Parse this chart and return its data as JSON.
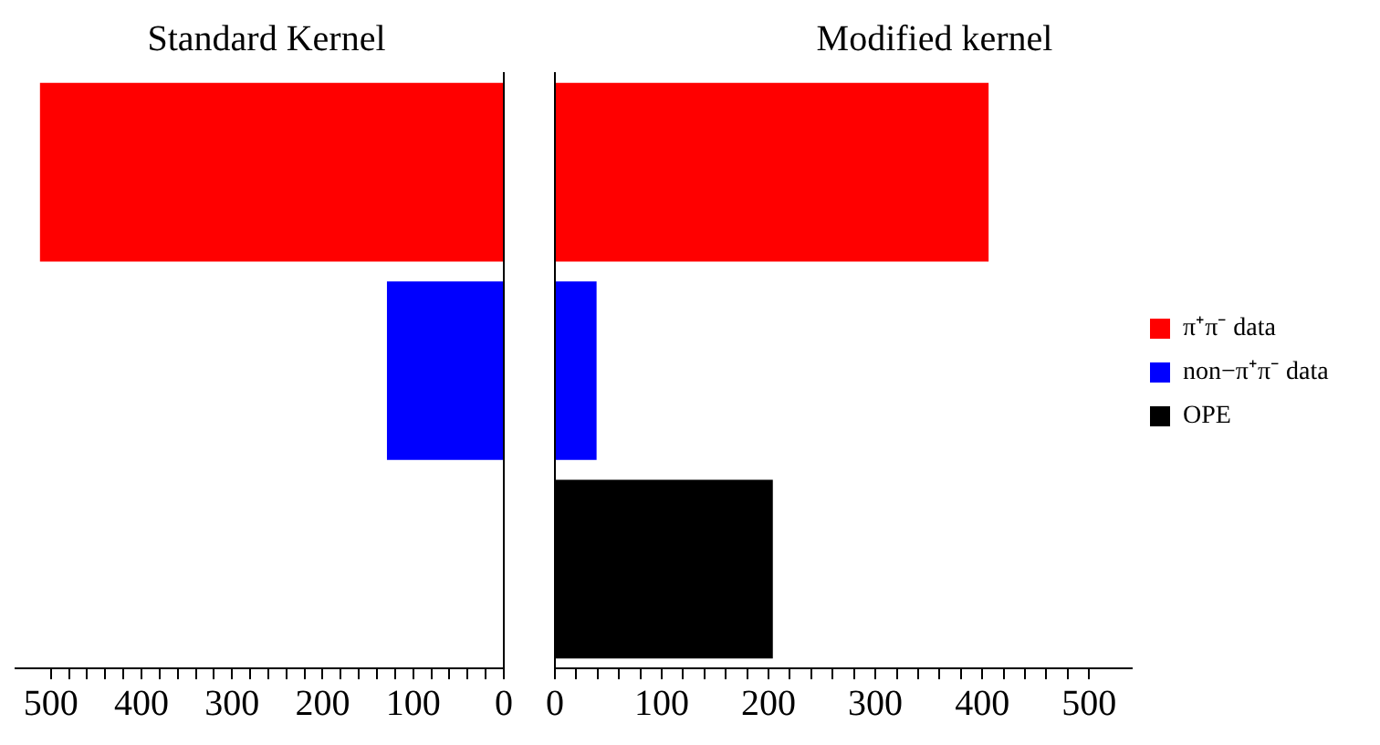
{
  "chart_data": [
    {
      "type": "bar",
      "orientation": "horizontal",
      "title": "Standard Kernel",
      "categories": [
        null,
        null,
        null
      ],
      "series": [
        {
          "color": "#ff0000",
          "values": [
            512,
            null,
            null
          ]
        },
        {
          "color": "#0000ff",
          "values": [
            null,
            129,
            null
          ]
        },
        {
          "color": "#000000",
          "values": [
            null,
            null,
            0
          ]
        }
      ],
      "xlim": [
        540,
        0
      ],
      "xticks": [
        {
          "value": 500,
          "label": "500"
        },
        {
          "value": 480,
          "label": null
        },
        {
          "value": 460,
          "label": null
        },
        {
          "value": 440,
          "label": null
        },
        {
          "value": 420,
          "label": null
        },
        {
          "value": 400,
          "label": "400"
        },
        {
          "value": 380,
          "label": null
        },
        {
          "value": 360,
          "label": null
        },
        {
          "value": 340,
          "label": null
        },
        {
          "value": 320,
          "label": null
        },
        {
          "value": 300,
          "label": "300"
        },
        {
          "value": 280,
          "label": null
        },
        {
          "value": 260,
          "label": null
        },
        {
          "value": 240,
          "label": null
        },
        {
          "value": 220,
          "label": null
        },
        {
          "value": 200,
          "label": "200"
        },
        {
          "value": 180,
          "label": null
        },
        {
          "value": 160,
          "label": null
        },
        {
          "value": 140,
          "label": null
        },
        {
          "value": 120,
          "label": null
        },
        {
          "value": 100,
          "label": "100"
        },
        {
          "value": 80,
          "label": null
        },
        {
          "value": 60,
          "label": null
        },
        {
          "value": 40,
          "label": null
        },
        {
          "value": 20,
          "label": null
        },
        {
          "value": 0,
          "label": "0"
        }
      ],
      "grid": false
    },
    {
      "type": "bar",
      "orientation": "horizontal",
      "title": "Modified kernel",
      "categories": [
        null,
        null,
        null
      ],
      "series": [
        {
          "name": "π⁺π⁻ data",
          "color": "#ff0000",
          "values": [
            406,
            null,
            null
          ]
        },
        {
          "name": "non−π⁺π⁻ data",
          "color": "#0000ff",
          "values": [
            null,
            39,
            null
          ]
        },
        {
          "name": "OPE",
          "color": "#000000",
          "values": [
            null,
            null,
            204
          ]
        }
      ],
      "xlim": [
        0,
        540
      ],
      "xticks": [
        {
          "value": 0,
          "label": "0"
        },
        {
          "value": 20,
          "label": null
        },
        {
          "value": 40,
          "label": null
        },
        {
          "value": 60,
          "label": null
        },
        {
          "value": 80,
          "label": null
        },
        {
          "value": 100,
          "label": "100"
        },
        {
          "value": 120,
          "label": null
        },
        {
          "value": 140,
          "label": null
        },
        {
          "value": 160,
          "label": null
        },
        {
          "value": 180,
          "label": null
        },
        {
          "value": 200,
          "label": "200"
        },
        {
          "value": 220,
          "label": null
        },
        {
          "value": 240,
          "label": null
        },
        {
          "value": 260,
          "label": null
        },
        {
          "value": 280,
          "label": null
        },
        {
          "value": 300,
          "label": "300"
        },
        {
          "value": 320,
          "label": null
        },
        {
          "value": 340,
          "label": null
        },
        {
          "value": 360,
          "label": null
        },
        {
          "value": 380,
          "label": null
        },
        {
          "value": 400,
          "label": "400"
        },
        {
          "value": 420,
          "label": null
        },
        {
          "value": 440,
          "label": null
        },
        {
          "value": 460,
          "label": null
        },
        {
          "value": 480,
          "label": null
        },
        {
          "value": 500,
          "label": "500"
        }
      ],
      "grid": false,
      "legend": "right"
    }
  ]
}
